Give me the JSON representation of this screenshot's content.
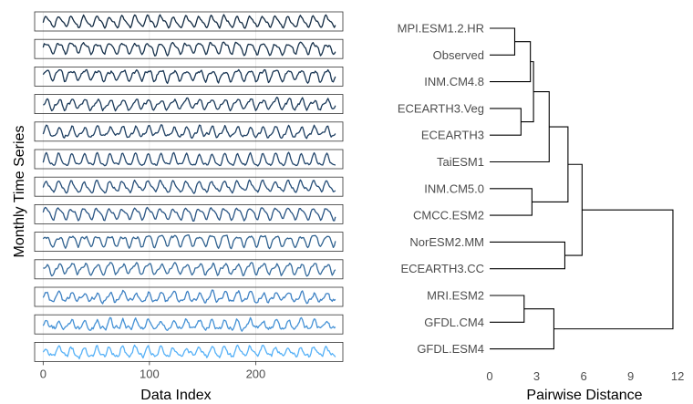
{
  "chart_data": [
    {
      "type": "line",
      "layout": "small-multiples",
      "xlabel": "Data Index",
      "ylabel": "Monthly Time Series",
      "xlim": [
        -8,
        282
      ],
      "x_ticks": [
        0,
        100,
        200
      ],
      "x_tick_labels": [
        "0",
        "100",
        "200"
      ],
      "n_points": 276,
      "series": [
        {
          "order": 1,
          "color": "#132b43",
          "cycle_months": 12,
          "noise": 0.25
        },
        {
          "order": 2,
          "color": "#16314b",
          "cycle_months": 12,
          "noise": 0.3
        },
        {
          "order": 3,
          "color": "#183553",
          "cycle_months": 12,
          "noise": 0.32
        },
        {
          "order": 4,
          "color": "#1b3a5a",
          "cycle_months": 12,
          "noise": 0.35
        },
        {
          "order": 5,
          "color": "#1e3f62",
          "cycle_months": 12,
          "noise": 0.4
        },
        {
          "order": 6,
          "color": "#22466c",
          "cycle_months": 12,
          "noise": 0.2
        },
        {
          "order": 7,
          "color": "#264e78",
          "cycle_months": 12,
          "noise": 0.3
        },
        {
          "order": 8,
          "color": "#2a5584",
          "cycle_months": 12,
          "noise": 0.22
        },
        {
          "order": 9,
          "color": "#306290",
          "cycle_months": 12,
          "noise": 0.3
        },
        {
          "order": 10,
          "color": "#366c9e",
          "cycle_months": 12,
          "noise": 0.35
        },
        {
          "order": 11,
          "color": "#3f82c4",
          "cycle_months": 12,
          "noise": 0.55
        },
        {
          "order": 12,
          "color": "#4592d6",
          "cycle_months": 12,
          "noise": 0.55
        },
        {
          "order": 13,
          "color": "#56b1f7",
          "cycle_months": 12,
          "noise": 0.55
        }
      ]
    },
    {
      "type": "dendrogram",
      "xlabel": "Pairwise Distance",
      "xlim": [
        0,
        12.4
      ],
      "x_ticks": [
        0,
        3,
        6,
        9,
        12
      ],
      "x_tick_labels": [
        "0",
        "3",
        "6",
        "9",
        "12"
      ],
      "leaves": [
        "MPI.ESM1.2.HR",
        "Observed",
        "INM.CM4.8",
        "ECEARTH3.Veg",
        "ECEARTH3",
        "TaiESM1",
        "INM.CM5.0",
        "CMCC.ESM2",
        "NorESM2.MM",
        "ECEARTH3.CC",
        "MRI.ESM2",
        "GFDL.CM4",
        "GFDL.ESM4"
      ],
      "merges": [
        {
          "a": "L0",
          "b": "L1",
          "height": 1.6
        },
        {
          "a": "L3",
          "b": "L4",
          "height": 2.0
        },
        {
          "a": "L6",
          "b": "L7",
          "height": 2.7
        },
        {
          "a": "L10",
          "b": "L11",
          "height": 2.2
        },
        {
          "a": "L8",
          "b": "L9",
          "height": 4.8
        },
        {
          "a": "M0",
          "b": "L2",
          "height": 2.6
        },
        {
          "a": "M5",
          "b": "M1",
          "height": 2.8
        },
        {
          "a": "M6",
          "b": "L5",
          "height": 3.8
        },
        {
          "a": "M7",
          "b": "M2",
          "height": 5.0
        },
        {
          "a": "M8",
          "b": "M4",
          "height": 5.9
        },
        {
          "a": "M3",
          "b": "L12",
          "height": 4.1
        },
        {
          "a": "M9",
          "b": "M10",
          "height": 11.7
        }
      ]
    }
  ]
}
